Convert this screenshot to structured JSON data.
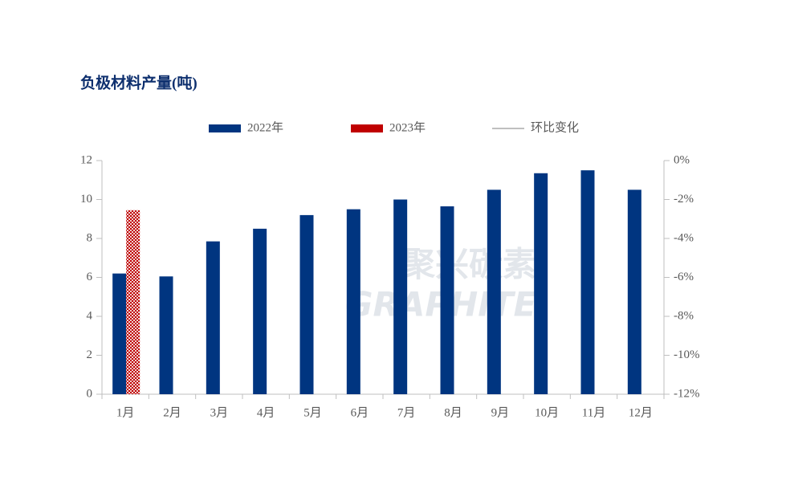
{
  "chart_data": {
    "type": "bar",
    "title": "负极材料产量(吨)",
    "categories": [
      "1月",
      "2月",
      "3月",
      "4月",
      "5月",
      "6月",
      "7月",
      "8月",
      "9月",
      "10月",
      "11月",
      "12月"
    ],
    "series": [
      {
        "name": "2022年",
        "color": "#003580",
        "values": [
          6.2,
          6.05,
          7.85,
          8.5,
          9.2,
          9.5,
          10.0,
          9.65,
          10.5,
          11.35,
          11.5,
          10.5
        ]
      },
      {
        "name": "2023年",
        "color": "#c00000",
        "values": [
          9.45,
          null,
          null,
          null,
          null,
          null,
          null,
          null,
          null,
          null,
          null,
          null
        ]
      },
      {
        "name": "环比变化",
        "color": "#bfbfbf",
        "type": "line",
        "axis": "y2",
        "values": [
          null,
          null,
          null,
          null,
          null,
          null,
          null,
          null,
          null,
          null,
          null,
          null
        ]
      }
    ],
    "ylim": [
      0,
      12
    ],
    "yticks": [
      0,
      2,
      4,
      6,
      8,
      10,
      12
    ],
    "y2lim": [
      -12,
      0
    ],
    "y2ticks": [
      {
        "value": -12,
        "label": "-12%"
      },
      {
        "value": -10,
        "label": "-10%"
      },
      {
        "value": -8,
        "label": "-8%"
      },
      {
        "value": -6,
        "label": "-6%"
      },
      {
        "value": -4,
        "label": "-4%"
      },
      {
        "value": -2,
        "label": "-2%"
      },
      {
        "value": 0,
        "label": "0%"
      }
    ],
    "legend": "top",
    "watermark": [
      "聚兴碳素",
      "GRAPHITE"
    ]
  }
}
